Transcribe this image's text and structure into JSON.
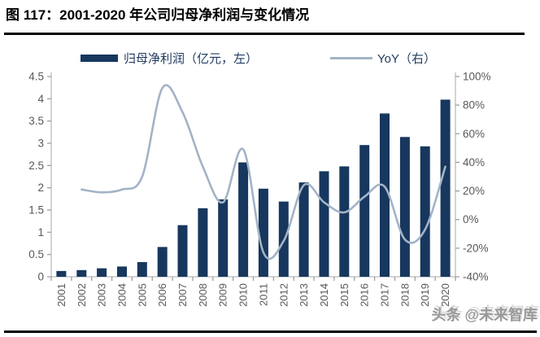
{
  "figure": {
    "title": "图 117：2001-2020 年公司归母净利润与变化情况",
    "watermark": "头条 @未来智库"
  },
  "legend": {
    "bar_label": "归母净利润（亿元，左）",
    "line_label": "YoY（右）"
  },
  "colors": {
    "bar": "#17375E",
    "line": "#A3B3C7",
    "axis_line": "#C6C6C6",
    "tick": "#999999",
    "tick_label": "#595959",
    "legend_text": "#1F3A5F",
    "title": "#000000",
    "watermark": "#8F8F8F"
  },
  "chart_data": {
    "type": "combo",
    "title": "图 117：2001-2020 年公司归母净利润与变化情况",
    "categories": [
      "2001",
      "2002",
      "2003",
      "2004",
      "2005",
      "2006",
      "2007",
      "2008",
      "2009",
      "2010",
      "2011",
      "2012",
      "2013",
      "2014",
      "2015",
      "2016",
      "2017",
      "2018",
      "2019",
      "2020"
    ],
    "series": [
      {
        "name": "归母净利润（亿元，左）",
        "type": "bar",
        "axis": "left",
        "color": "#17375E",
        "values": [
          0.13,
          0.15,
          0.19,
          0.23,
          0.33,
          0.67,
          1.16,
          1.54,
          1.74,
          2.57,
          1.98,
          1.69,
          2.12,
          2.37,
          2.48,
          2.96,
          3.67,
          3.14,
          2.93,
          3.98
        ]
      },
      {
        "name": "YoY（右）",
        "type": "line",
        "axis": "right",
        "color": "#A3B3C7",
        "values": [
          null,
          21,
          19,
          21,
          30,
          92,
          75,
          37,
          12,
          49,
          -23,
          -15,
          24,
          12,
          5,
          16,
          23,
          -14,
          -7,
          37
        ]
      }
    ],
    "left_axis": {
      "min": 0,
      "max": 4.5,
      "step": 0.5,
      "tick_labels_bottom_to_top": [
        "0",
        "0.5",
        "1",
        "1.5",
        "2",
        "2.5",
        "3",
        "3.5",
        "4",
        "4.5"
      ]
    },
    "right_axis": {
      "min": -40,
      "max": 100,
      "step": 20,
      "tick_labels_bottom_to_top": [
        "-40%",
        "-20%",
        "0%",
        "20%",
        "40%",
        "60%",
        "80%",
        "100%"
      ]
    },
    "grid": false,
    "legend_position": "top",
    "x_label_rotation_deg": -90
  }
}
